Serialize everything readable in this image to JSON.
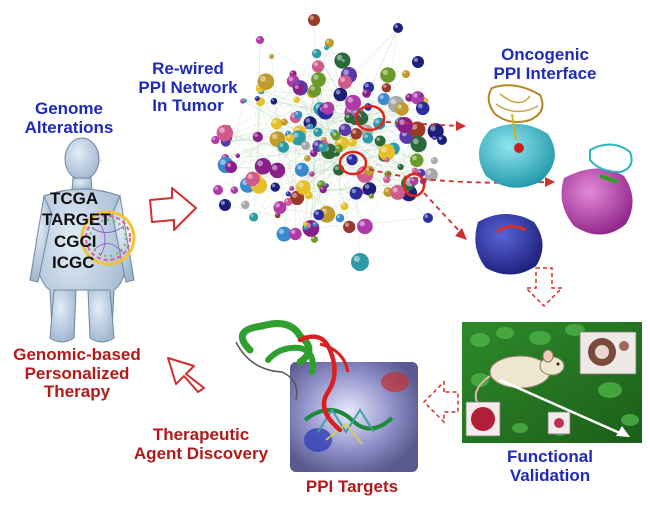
{
  "labels": {
    "genome": [
      "Genome",
      "Alterations"
    ],
    "rewired": [
      "Re-wired",
      "PPI Network",
      "In Tumor"
    ],
    "oncogenic": [
      "Oncogenic",
      "PPI Interface"
    ],
    "databases": [
      "TCGA",
      "TARGET",
      "CGCI",
      "ICGC"
    ],
    "therapy": [
      "Genomic-based",
      "Personalized",
      "Therapy"
    ],
    "therapeutic": [
      "Therapeutic",
      "Agent Discovery"
    ],
    "ppi_targets": "PPI Targets",
    "functional": [
      "Functional",
      "Validation"
    ]
  },
  "colors": {
    "blue_text": "#1f2bb8",
    "red_text": "#b21a1a",
    "arrow": "#d0302a",
    "body": "#b9cbe0",
    "micro": "#2e8a2a",
    "protein_cyan": "#3bb8c8",
    "protein_magenta": "#c040b8",
    "protein_navy": "#2a2e9e"
  }
}
